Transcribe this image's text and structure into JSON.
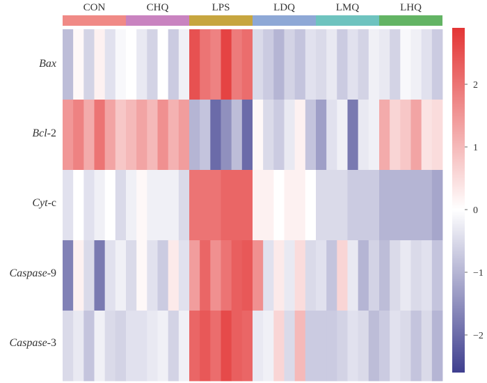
{
  "chart_data": {
    "type": "heatmap",
    "groups": [
      {
        "label": "CON",
        "color": "#f08a86"
      },
      {
        "label": "CHQ",
        "color": "#c983c0"
      },
      {
        "label": "LPS",
        "color": "#c7a63f"
      },
      {
        "label": "LDQ",
        "color": "#8ea8d6"
      },
      {
        "label": "LMQ",
        "color": "#6ec3bf"
      },
      {
        "label": "LHQ",
        "color": "#63b464"
      }
    ],
    "columns_per_group": 6,
    "rows": [
      {
        "prefix": "",
        "italic": "Bax",
        "suffix": ""
      },
      {
        "prefix": "",
        "italic": "Bcl",
        "suffix": "-2"
      },
      {
        "prefix": "",
        "italic": "Cyt",
        "suffix": "-c"
      },
      {
        "prefix": "",
        "italic": "Caspase",
        "suffix": "-9"
      },
      {
        "prefix": "",
        "italic": "Caspase",
        "suffix": "-3"
      }
    ],
    "values": [
      [
        -0.9,
        0.1,
        -0.6,
        0.2,
        -0.4,
        -0.1,
        0.0,
        -0.3,
        -0.6,
        0.0,
        -0.7,
        -0.2,
        2.5,
        2.0,
        1.8,
        2.7,
        1.9,
        2.1,
        -0.5,
        -0.7,
        -1.0,
        -0.6,
        -0.8,
        -0.4,
        -0.5,
        -0.3,
        -0.7,
        -0.4,
        -0.6,
        -0.2,
        -0.3,
        -0.6,
        -0.1,
        -0.2,
        -0.4,
        -0.7
      ],
      [
        1.5,
        1.8,
        1.2,
        2.0,
        1.3,
        0.8,
        1.0,
        1.3,
        1.0,
        1.6,
        1.1,
        1.4,
        -1.0,
        -0.8,
        -2.0,
        -1.5,
        -0.9,
        -2.0,
        0.1,
        -0.5,
        -0.7,
        -0.3,
        0.2,
        -0.8,
        -1.3,
        -0.4,
        -0.2,
        -1.8,
        -0.3,
        -0.2,
        1.2,
        0.6,
        0.8,
        1.3,
        0.4,
        0.5
      ],
      [
        -0.4,
        0.0,
        -0.4,
        -0.2,
        0.0,
        -0.5,
        -0.2,
        0.1,
        -0.2,
        -0.2,
        -0.2,
        -0.5,
        2.0,
        2.0,
        2.0,
        2.2,
        2.2,
        2.2,
        0.2,
        0.2,
        0.0,
        0.2,
        0.2,
        0.0,
        -0.5,
        -0.5,
        -0.5,
        -0.7,
        -0.7,
        -0.7,
        -1.0,
        -1.0,
        -1.0,
        -1.0,
        -1.0,
        -1.2
      ],
      [
        -1.7,
        0.2,
        -0.5,
        -1.8,
        -0.4,
        -0.2,
        -0.5,
        0.1,
        -0.4,
        -0.7,
        0.3,
        -0.4,
        1.4,
        2.2,
        1.6,
        2.0,
        2.3,
        2.4,
        1.6,
        -0.4,
        0.3,
        -0.3,
        0.5,
        -0.5,
        -0.4,
        -0.8,
        0.6,
        -0.3,
        -1.0,
        -0.6,
        -0.9,
        -0.5,
        -0.3,
        -0.5,
        -0.4,
        -0.8
      ],
      [
        -0.5,
        -0.3,
        -0.8,
        -0.2,
        -0.5,
        -0.6,
        -0.4,
        -0.4,
        -0.3,
        -0.2,
        -0.6,
        -0.2,
        2.2,
        2.4,
        2.1,
        2.6,
        2.3,
        2.2,
        -0.3,
        -0.2,
        0.6,
        -0.5,
        1.0,
        -0.7,
        -0.7,
        -0.7,
        -0.6,
        -0.4,
        -0.5,
        -0.9,
        -0.7,
        -0.4,
        -0.5,
        -0.8,
        -0.5,
        -1.0
      ]
    ],
    "scale": {
      "min": -2.6,
      "max": 2.9,
      "ticks": [
        2,
        1,
        0,
        -1,
        -2
      ],
      "tick_labels": [
        "2",
        "1",
        "0",
        "−1",
        "−2"
      ],
      "colors": {
        "low": "#3f3f8f",
        "mid": "#ffffff",
        "high": "#e33535"
      }
    }
  }
}
